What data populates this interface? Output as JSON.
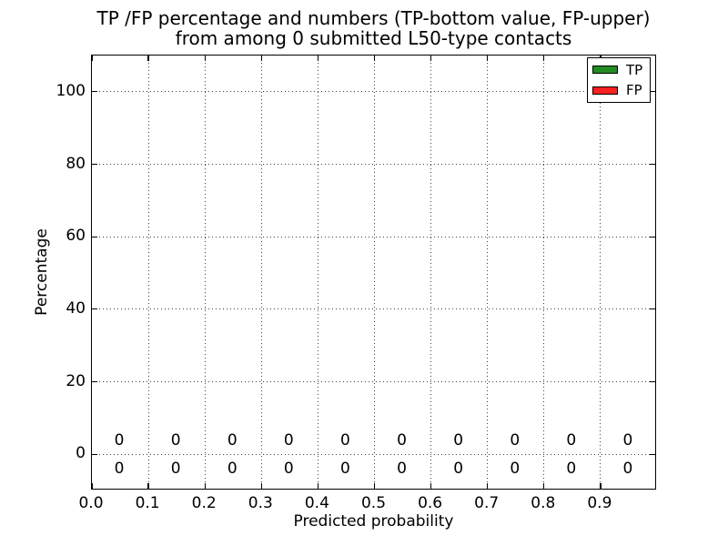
{
  "chart_data": {
    "type": "bar",
    "title": "TP /FP percentage and numbers (TP-bottom value, FP-upper)\nfrom among 0 submitted L50-type contacts",
    "title_line1": "TP /FP percentage and numbers (TP-bottom value, FP-upper)",
    "title_line2": "from among 0 submitted L50-type contacts",
    "xlabel": "Predicted probability",
    "ylabel": "Percentage",
    "xlim": [
      0.0,
      1.0
    ],
    "ylim": [
      -10,
      110
    ],
    "xticks": [
      0.0,
      0.1,
      0.2,
      0.3,
      0.4,
      0.5,
      0.6,
      0.7,
      0.8,
      0.9
    ],
    "xtick_labels": [
      "0.0",
      "0.1",
      "0.2",
      "0.3",
      "0.4",
      "0.5",
      "0.6",
      "0.7",
      "0.8",
      "0.9"
    ],
    "yticks": [
      0,
      20,
      40,
      60,
      80,
      100
    ],
    "ytick_labels": [
      "0",
      "20",
      "40",
      "60",
      "80",
      "100"
    ],
    "grid": true,
    "grid_style": "dotted",
    "legend_position": "upper right",
    "legend": [
      {
        "label": "TP",
        "color": "#228B22"
      },
      {
        "label": "FP",
        "color": "#ff2020"
      }
    ],
    "bin_centers": [
      0.05,
      0.15,
      0.25,
      0.35,
      0.45,
      0.55,
      0.65,
      0.75,
      0.85,
      0.95
    ],
    "series": [
      {
        "name": "TP",
        "color": "#228B22",
        "label_row": "lower",
        "values": [
          0,
          0,
          0,
          0,
          0,
          0,
          0,
          0,
          0,
          0
        ]
      },
      {
        "name": "FP",
        "color": "#ff2020",
        "label_row": "upper",
        "values": [
          0,
          0,
          0,
          0,
          0,
          0,
          0,
          0,
          0,
          0
        ]
      }
    ]
  }
}
